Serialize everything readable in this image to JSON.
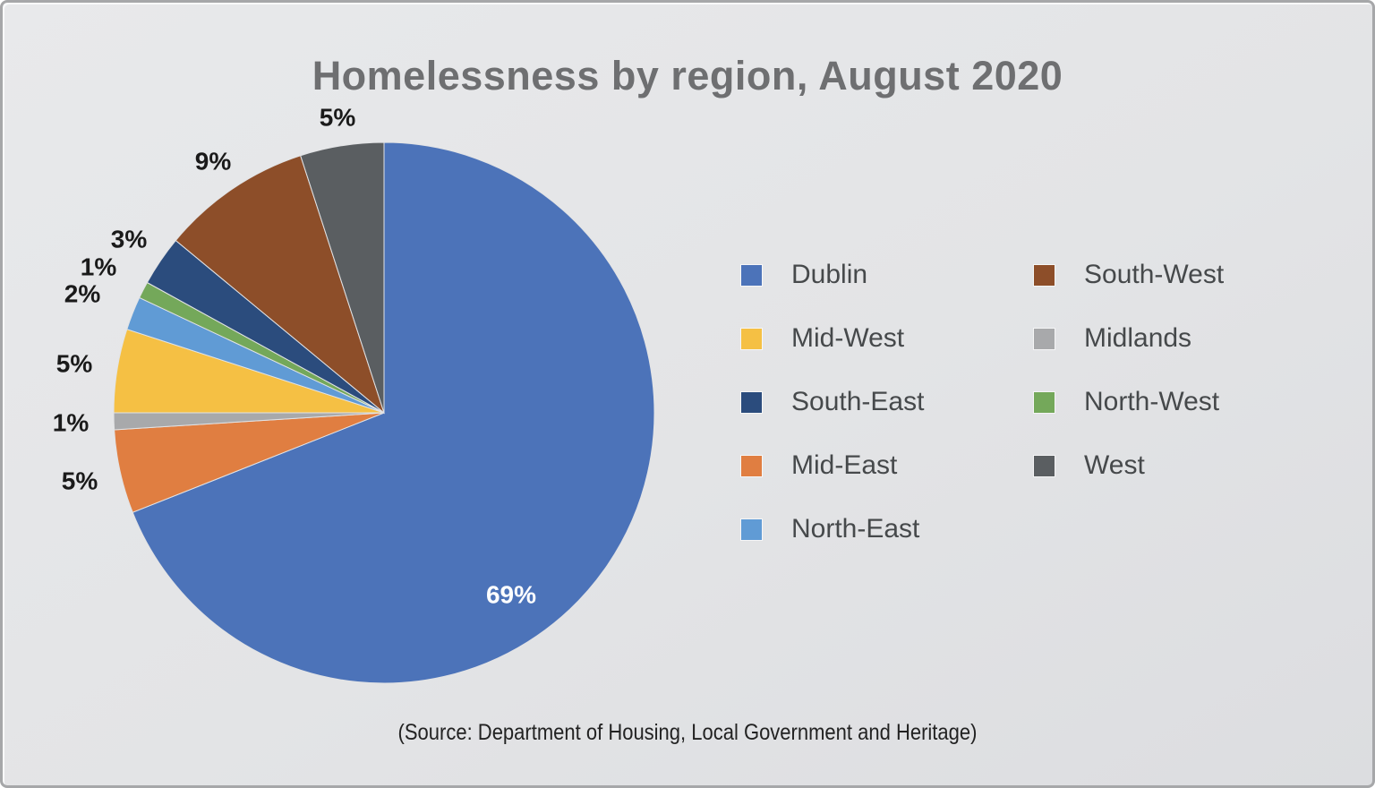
{
  "title": "Homelessness by region, August 2020",
  "source_note": "(Source: Department of Housing, Local Government and Heritage)",
  "chart_data": {
    "type": "pie",
    "title": "Homelessness by region, August 2020",
    "unit": "percent",
    "direction": "clockwise",
    "start_angle_deg": 0,
    "legend_position": "right",
    "background_color": "#e3e4e6",
    "slices": [
      {
        "name": "Dublin",
        "value": 69,
        "label": "69%",
        "color": "#4C73B9"
      },
      {
        "name": "Mid-East",
        "value": 5,
        "label": "5%",
        "color": "#E07E41"
      },
      {
        "name": "Midlands",
        "value": 1,
        "label": "1%",
        "color": "#A8A9AB"
      },
      {
        "name": "Mid-West",
        "value": 5,
        "label": "5%",
        "color": "#F5C044"
      },
      {
        "name": "North-East",
        "value": 2,
        "label": "2%",
        "color": "#609BD5"
      },
      {
        "name": "North-West",
        "value": 1,
        "label": "1%",
        "color": "#74A85A"
      },
      {
        "name": "South-East",
        "value": 3,
        "label": "3%",
        "color": "#2B4C7D"
      },
      {
        "name": "South-West",
        "value": 9,
        "label": "9%",
        "color": "#8D4E29"
      },
      {
        "name": "West",
        "value": 5,
        "label": "5%",
        "color": "#5A5E61"
      }
    ],
    "legend_columns": [
      [
        "Dublin",
        "Mid-West",
        "South-East",
        "Mid-East",
        "North-East"
      ],
      [
        "South-West",
        "Midlands",
        "North-West",
        "West"
      ]
    ],
    "label_layout": {
      "Dublin": {
        "placement": "inside",
        "r": 248,
        "angle": 145,
        "color": "#FFFFFF"
      },
      "Mid-East": {
        "placement": "outside",
        "r": 348
      },
      "Midlands": {
        "placement": "outside",
        "r": 350
      },
      "Mid-West": {
        "placement": "outside",
        "r": 350
      },
      "North-East": {
        "placement": "outside",
        "r": 362
      },
      "North-West": {
        "placement": "outside",
        "r": 358
      },
      "South-East": {
        "placement": "outside",
        "r": 345
      },
      "South-West": {
        "placement": "outside",
        "r": 340
      },
      "West": {
        "placement": "outside",
        "r": 334
      }
    }
  }
}
